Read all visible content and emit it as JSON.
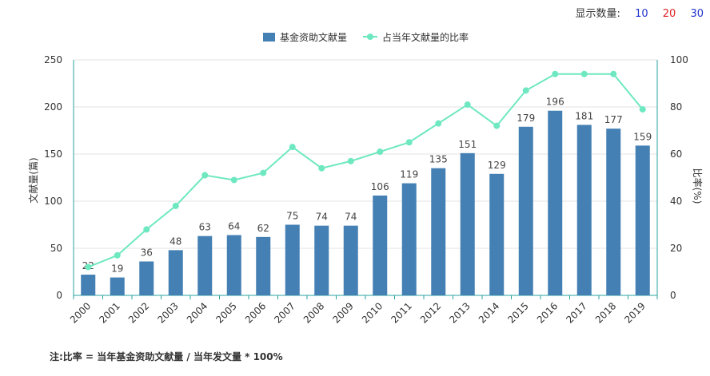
{
  "display_count": {
    "label": "显示数量:",
    "options": [
      {
        "label": "10",
        "color": "#2233cc"
      },
      {
        "label": "20",
        "color": "#dd2222"
      },
      {
        "label": "30",
        "color": "#2233cc"
      }
    ]
  },
  "note": "注:比率 = 当年基金资助文献量 / 当年发文量 * 100%",
  "colors": {
    "bar": "#4480b4",
    "line": "#6ee8c0",
    "axis": "#2aa3a0"
  },
  "chart_data": {
    "type": "bar",
    "categories": [
      "2000",
      "2001",
      "2002",
      "2003",
      "2004",
      "2005",
      "2006",
      "2007",
      "2008",
      "2009",
      "2010",
      "2011",
      "2012",
      "2013",
      "2014",
      "2015",
      "2016",
      "2017",
      "2018",
      "2019"
    ],
    "series": [
      {
        "name": "基金资助文献量",
        "type": "bar",
        "axis": "left",
        "values": [
          22,
          19,
          36,
          48,
          63,
          64,
          62,
          75,
          74,
          74,
          106,
          119,
          135,
          151,
          129,
          179,
          196,
          181,
          177,
          159
        ]
      },
      {
        "name": "占当年文献量的比率",
        "type": "line",
        "axis": "right",
        "values": [
          12,
          17,
          28,
          38,
          51,
          49,
          52,
          63,
          54,
          57,
          61,
          65,
          73,
          81,
          72,
          87,
          94,
          94,
          94,
          79
        ]
      }
    ],
    "ylabel": "文献量(篇)",
    "ylabel_right": "比率(%)",
    "ylim": [
      0,
      250
    ],
    "ylim_right": [
      0,
      100
    ],
    "yticks": [
      "0",
      "50",
      "100",
      "150",
      "200",
      "250"
    ],
    "yticks_right": [
      "0",
      "20",
      "40",
      "60",
      "80",
      "100"
    ],
    "grid": true,
    "legend_position": "top-center"
  }
}
